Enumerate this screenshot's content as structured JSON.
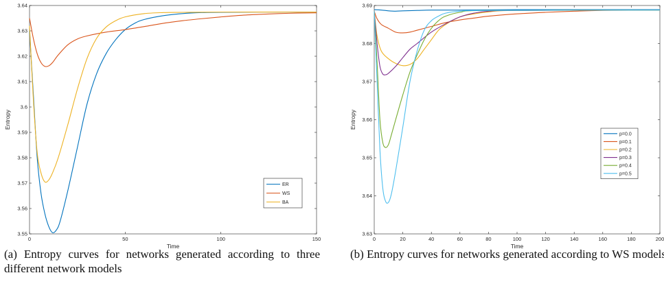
{
  "captions": {
    "a": "(a) Entropy curves for networks generated according to three different network models",
    "b": "(b) Entropy curves for networks generated according to WS models"
  },
  "chart_data": [
    {
      "type": "line",
      "xlabel": "Time",
      "ylabel": "Entropy",
      "xlim": [
        0,
        150
      ],
      "ylim": [
        3.55,
        3.64
      ],
      "xticks": [
        0,
        50,
        100,
        150
      ],
      "xtick_labels": [
        "0",
        "50",
        "100",
        "150"
      ],
      "yticks": [
        3.55,
        3.56,
        3.57,
        3.58,
        3.59,
        3.6,
        3.61,
        3.62,
        3.63,
        3.64
      ],
      "ytick_labels": [
        "3.55",
        "3.56",
        "3.57",
        "3.58",
        "3.59",
        "3.6",
        "3.61",
        "3.62",
        "3.63",
        "3.64"
      ],
      "grid": false,
      "legend_position": "lower-right",
      "series": [
        {
          "name": "ER",
          "color": "#0072BD",
          "points": [
            [
              0,
              3.63
            ],
            [
              2,
              3.605
            ],
            [
              4,
              3.58
            ],
            [
              6,
              3.566
            ],
            [
              8,
              3.558
            ],
            [
              10,
              3.553
            ],
            [
              12,
              3.5505
            ],
            [
              14,
              3.5515
            ],
            [
              16,
              3.555
            ],
            [
              20,
              3.567
            ],
            [
              25,
              3.584
            ],
            [
              30,
              3.601
            ],
            [
              35,
              3.613
            ],
            [
              40,
              3.621
            ],
            [
              45,
              3.6265
            ],
            [
              50,
              3.6305
            ],
            [
              55,
              3.633
            ],
            [
              60,
              3.6345
            ],
            [
              70,
              3.636
            ],
            [
              80,
              3.6368
            ],
            [
              90,
              3.6372
            ],
            [
              100,
              3.6373
            ],
            [
              120,
              3.6374
            ],
            [
              150,
              3.6374
            ]
          ]
        },
        {
          "name": "WS",
          "color": "#D95319",
          "points": [
            [
              0,
              3.635
            ],
            [
              2,
              3.627
            ],
            [
              4,
              3.621
            ],
            [
              6,
              3.6175
            ],
            [
              8,
              3.616
            ],
            [
              10,
              3.6162
            ],
            [
              12,
              3.6175
            ],
            [
              15,
              3.6205
            ],
            [
              20,
              3.6245
            ],
            [
              25,
              3.6268
            ],
            [
              30,
              3.628
            ],
            [
              40,
              3.6295
            ],
            [
              50,
              3.6305
            ],
            [
              60,
              3.6317
            ],
            [
              70,
              3.633
            ],
            [
              80,
              3.634
            ],
            [
              90,
              3.6348
            ],
            [
              100,
              3.6355
            ],
            [
              110,
              3.6361
            ],
            [
              120,
              3.6365
            ],
            [
              130,
              3.6368
            ],
            [
              140,
              3.637
            ],
            [
              150,
              3.6371
            ]
          ]
        },
        {
          "name": "BA",
          "color": "#EDB120",
          "points": [
            [
              0,
              3.632
            ],
            [
              2,
              3.603
            ],
            [
              4,
              3.582
            ],
            [
              6,
              3.574
            ],
            [
              8,
              3.5705
            ],
            [
              10,
              3.5712
            ],
            [
              12,
              3.574
            ],
            [
              15,
              3.58
            ],
            [
              20,
              3.593
            ],
            [
              25,
              3.607
            ],
            [
              30,
              3.619
            ],
            [
              35,
              3.627
            ],
            [
              40,
              3.6315
            ],
            [
              45,
              3.634
            ],
            [
              50,
              3.6355
            ],
            [
              60,
              3.6368
            ],
            [
              70,
              3.6372
            ],
            [
              80,
              3.6373
            ],
            [
              100,
              3.6374
            ],
            [
              150,
              3.6374
            ]
          ]
        }
      ]
    },
    {
      "type": "line",
      "xlabel": "Time",
      "ylabel": "Entropy",
      "xlim": [
        0,
        200
      ],
      "ylim": [
        3.63,
        3.69
      ],
      "xticks": [
        0,
        20,
        40,
        60,
        80,
        100,
        120,
        140,
        160,
        180,
        200
      ],
      "xtick_labels": [
        "0",
        "20",
        "40",
        "60",
        "80",
        "100",
        "120",
        "140",
        "160",
        "180",
        "200"
      ],
      "yticks": [
        3.63,
        3.64,
        3.65,
        3.66,
        3.67,
        3.68,
        3.69
      ],
      "ytick_labels": [
        "3.63",
        "3.64",
        "3.65",
        "3.66",
        "3.67",
        "3.68",
        "3.69"
      ],
      "grid": false,
      "legend_position": "right",
      "series": [
        {
          "name": "p=0.0",
          "color": "#0072BD",
          "points": [
            [
              0,
              3.6889
            ],
            [
              5,
              3.6888
            ],
            [
              10,
              3.6886
            ],
            [
              15,
              3.6885
            ],
            [
              20,
              3.6886
            ],
            [
              30,
              3.6887
            ],
            [
              40,
              3.6888
            ],
            [
              60,
              3.6888
            ],
            [
              100,
              3.6889
            ],
            [
              200,
              3.6889
            ]
          ]
        },
        {
          "name": "p=0.1",
          "color": "#D95319",
          "points": [
            [
              0,
              3.6885
            ],
            [
              2,
              3.6865
            ],
            [
              5,
              3.685
            ],
            [
              10,
              3.684
            ],
            [
              15,
              3.683
            ],
            [
              20,
              3.6828
            ],
            [
              25,
              3.683
            ],
            [
              30,
              3.6835
            ],
            [
              40,
              3.6845
            ],
            [
              50,
              3.6855
            ],
            [
              60,
              3.6862
            ],
            [
              70,
              3.6867
            ],
            [
              80,
              3.6872
            ],
            [
              100,
              3.6878
            ],
            [
              120,
              3.6882
            ],
            [
              140,
              3.6885
            ],
            [
              160,
              3.6887
            ],
            [
              200,
              3.6888
            ]
          ]
        },
        {
          "name": "p=0.2",
          "color": "#EDB120",
          "points": [
            [
              0,
              3.6885
            ],
            [
              2,
              3.682
            ],
            [
              5,
              3.678
            ],
            [
              10,
              3.676
            ],
            [
              15,
              3.6748
            ],
            [
              20,
              3.6742
            ],
            [
              25,
              3.6745
            ],
            [
              30,
              3.676
            ],
            [
              35,
              3.6785
            ],
            [
              40,
              3.681
            ],
            [
              45,
              3.6835
            ],
            [
              50,
              3.685
            ],
            [
              60,
              3.687
            ],
            [
              70,
              3.6878
            ],
            [
              80,
              3.6883
            ],
            [
              100,
              3.6887
            ],
            [
              200,
              3.6888
            ]
          ]
        },
        {
          "name": "p=0.3",
          "color": "#7E2F8E",
          "points": [
            [
              0,
              3.6885
            ],
            [
              2,
              3.68
            ],
            [
              4,
              3.674
            ],
            [
              6,
              3.672
            ],
            [
              8,
              3.6718
            ],
            [
              10,
              3.6722
            ],
            [
              15,
              3.674
            ],
            [
              20,
              3.6763
            ],
            [
              25,
              3.6785
            ],
            [
              30,
              3.68
            ],
            [
              40,
              3.683
            ],
            [
              50,
              3.6852
            ],
            [
              60,
              3.687
            ],
            [
              70,
              3.688
            ],
            [
              80,
              3.6885
            ],
            [
              100,
              3.6887
            ],
            [
              200,
              3.6888
            ]
          ]
        },
        {
          "name": "p=0.4",
          "color": "#77AC30",
          "points": [
            [
              0,
              3.6885
            ],
            [
              2,
              3.675
            ],
            [
              4,
              3.66
            ],
            [
              6,
              3.654
            ],
            [
              8,
              3.6527
            ],
            [
              10,
              3.6535
            ],
            [
              12,
              3.656
            ],
            [
              15,
              3.66
            ],
            [
              20,
              3.6665
            ],
            [
              25,
              3.6725
            ],
            [
              30,
              3.677
            ],
            [
              35,
              3.681
            ],
            [
              40,
              3.684
            ],
            [
              45,
              3.686
            ],
            [
              50,
              3.6872
            ],
            [
              60,
              3.6882
            ],
            [
              80,
              3.6887
            ],
            [
              200,
              3.6888
            ]
          ]
        },
        {
          "name": "p=0.5",
          "color": "#4DBEEE",
          "points": [
            [
              0,
              3.6885
            ],
            [
              2,
              3.67
            ],
            [
              4,
              3.652
            ],
            [
              6,
              3.642
            ],
            [
              8,
              3.6385
            ],
            [
              10,
              3.6383
            ],
            [
              12,
              3.6405
            ],
            [
              15,
              3.6465
            ],
            [
              20,
              3.658
            ],
            [
              25,
              3.67
            ],
            [
              30,
              3.678
            ],
            [
              35,
              3.6835
            ],
            [
              40,
              3.686
            ],
            [
              45,
              3.6872
            ],
            [
              50,
              3.688
            ],
            [
              60,
              3.6885
            ],
            [
              80,
              3.6887
            ],
            [
              200,
              3.6888
            ]
          ]
        }
      ]
    }
  ]
}
